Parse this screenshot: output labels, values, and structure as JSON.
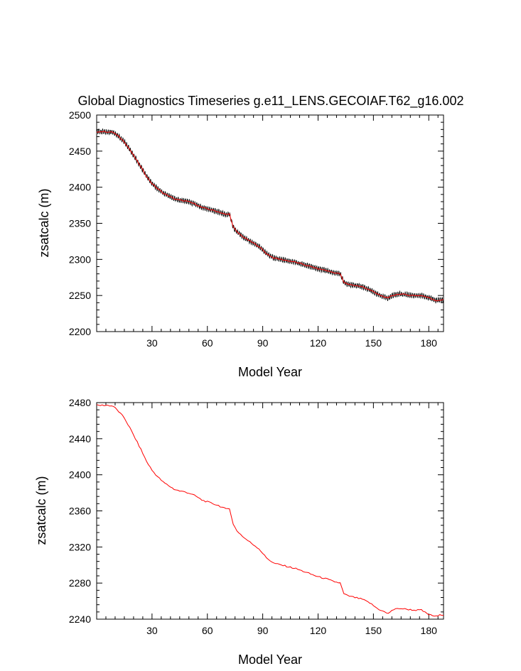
{
  "figure_title": "Global Diagnostics Timeseries g.e11_LENS.GECOIAF.T62_g16.002",
  "chart_data": [
    {
      "type": "line",
      "title": "Global Diagnostics Timeseries g.e11_LENS.GECOIAF.T62_g16.002",
      "xlabel": "Model Year",
      "ylabel": "zsatcalc (m)",
      "xlim": [
        0,
        188
      ],
      "ylim": [
        2200,
        2500
      ],
      "xticks": [
        30,
        60,
        90,
        120,
        150,
        180
      ],
      "xtick_labels": [
        "30",
        "60",
        "90",
        "120",
        "150",
        "180"
      ],
      "yticks": [
        2200,
        2250,
        2300,
        2350,
        2400,
        2450,
        2500
      ],
      "ytick_labels": [
        "2200",
        "2250",
        "2300",
        "2350",
        "2400",
        "2450",
        "2500"
      ],
      "series": [
        {
          "style": "monthly",
          "color": "#000000",
          "seasonal_amplitude": 3,
          "x": [
            0,
            5,
            9,
            12,
            15,
            18,
            21,
            24,
            27,
            30,
            33,
            36,
            39,
            42,
            45,
            48,
            51,
            54,
            57,
            60,
            63,
            66,
            68,
            70,
            72,
            74,
            76,
            80,
            84,
            88,
            92,
            96,
            100,
            104,
            108,
            112,
            116,
            120,
            124,
            128,
            132,
            134,
            136,
            140,
            144,
            148,
            152,
            156,
            158,
            160,
            164,
            168,
            172,
            176,
            180,
            184,
            187
          ],
          "y": [
            2477,
            2477,
            2476,
            2470,
            2463,
            2452,
            2440,
            2428,
            2415,
            2405,
            2398,
            2392,
            2388,
            2384,
            2382,
            2381,
            2379,
            2376,
            2372,
            2370,
            2368,
            2366,
            2364,
            2362,
            2363,
            2345,
            2338,
            2330,
            2324,
            2318,
            2308,
            2302,
            2300,
            2298,
            2296,
            2293,
            2290,
            2287,
            2285,
            2282,
            2280,
            2268,
            2266,
            2264,
            2262,
            2258,
            2252,
            2248,
            2246,
            2250,
            2252,
            2251,
            2250,
            2250,
            2247,
            2243,
            2244
          ]
        },
        {
          "style": "annual",
          "color": "#ff0000",
          "x": [
            0,
            5,
            9,
            12,
            15,
            18,
            21,
            24,
            27,
            30,
            33,
            36,
            39,
            42,
            45,
            48,
            51,
            54,
            57,
            60,
            63,
            66,
            68,
            70,
            72,
            74,
            76,
            80,
            84,
            88,
            92,
            96,
            100,
            104,
            108,
            112,
            116,
            120,
            124,
            128,
            132,
            134,
            136,
            140,
            144,
            148,
            152,
            156,
            158,
            160,
            164,
            168,
            172,
            176,
            180,
            184,
            187
          ],
          "y": [
            2477,
            2477,
            2476,
            2470,
            2463,
            2452,
            2440,
            2428,
            2415,
            2405,
            2398,
            2392,
            2388,
            2384,
            2382,
            2381,
            2379,
            2376,
            2372,
            2370,
            2368,
            2366,
            2364,
            2362,
            2363,
            2345,
            2338,
            2330,
            2324,
            2318,
            2308,
            2302,
            2300,
            2298,
            2296,
            2293,
            2290,
            2287,
            2285,
            2282,
            2280,
            2268,
            2266,
            2264,
            2262,
            2258,
            2252,
            2248,
            2246,
            2250,
            2252,
            2251,
            2250,
            2250,
            2247,
            2243,
            2244
          ]
        }
      ]
    },
    {
      "type": "line",
      "xlabel": "Model Year",
      "ylabel": "zsatcalc (m)",
      "xlim": [
        0,
        188
      ],
      "ylim": [
        2240,
        2480
      ],
      "xticks": [
        30,
        60,
        90,
        120,
        150,
        180
      ],
      "xtick_labels": [
        "30",
        "60",
        "90",
        "120",
        "150",
        "180"
      ],
      "yticks": [
        2240,
        2280,
        2320,
        2360,
        2400,
        2440,
        2480
      ],
      "ytick_labels": [
        "2240",
        "2280",
        "2320",
        "2360",
        "2400",
        "2440",
        "2480"
      ],
      "series": [
        {
          "style": "annual",
          "color": "#ff0000",
          "x": [
            0,
            3,
            6,
            9,
            12,
            15,
            18,
            21,
            24,
            27,
            30,
            33,
            36,
            39,
            42,
            45,
            48,
            51,
            54,
            57,
            60,
            63,
            66,
            68,
            70,
            72,
            74,
            76,
            80,
            84,
            88,
            92,
            96,
            100,
            104,
            108,
            112,
            116,
            120,
            124,
            128,
            132,
            134,
            136,
            140,
            144,
            148,
            152,
            156,
            158,
            160,
            164,
            168,
            172,
            176,
            180,
            184,
            187
          ],
          "y": [
            2477,
            2477,
            2477,
            2476,
            2470,
            2463,
            2452,
            2440,
            2428,
            2415,
            2405,
            2398,
            2392,
            2388,
            2384,
            2382,
            2381,
            2379,
            2376,
            2372,
            2370,
            2368,
            2366,
            2364,
            2362,
            2363,
            2345,
            2338,
            2330,
            2324,
            2318,
            2308,
            2302,
            2300,
            2298,
            2296,
            2293,
            2290,
            2287,
            2285,
            2282,
            2280,
            2268,
            2266,
            2264,
            2262,
            2258,
            2252,
            2248,
            2246,
            2250,
            2252,
            2251,
            2250,
            2250,
            2245,
            2243,
            2245
          ]
        }
      ]
    }
  ]
}
